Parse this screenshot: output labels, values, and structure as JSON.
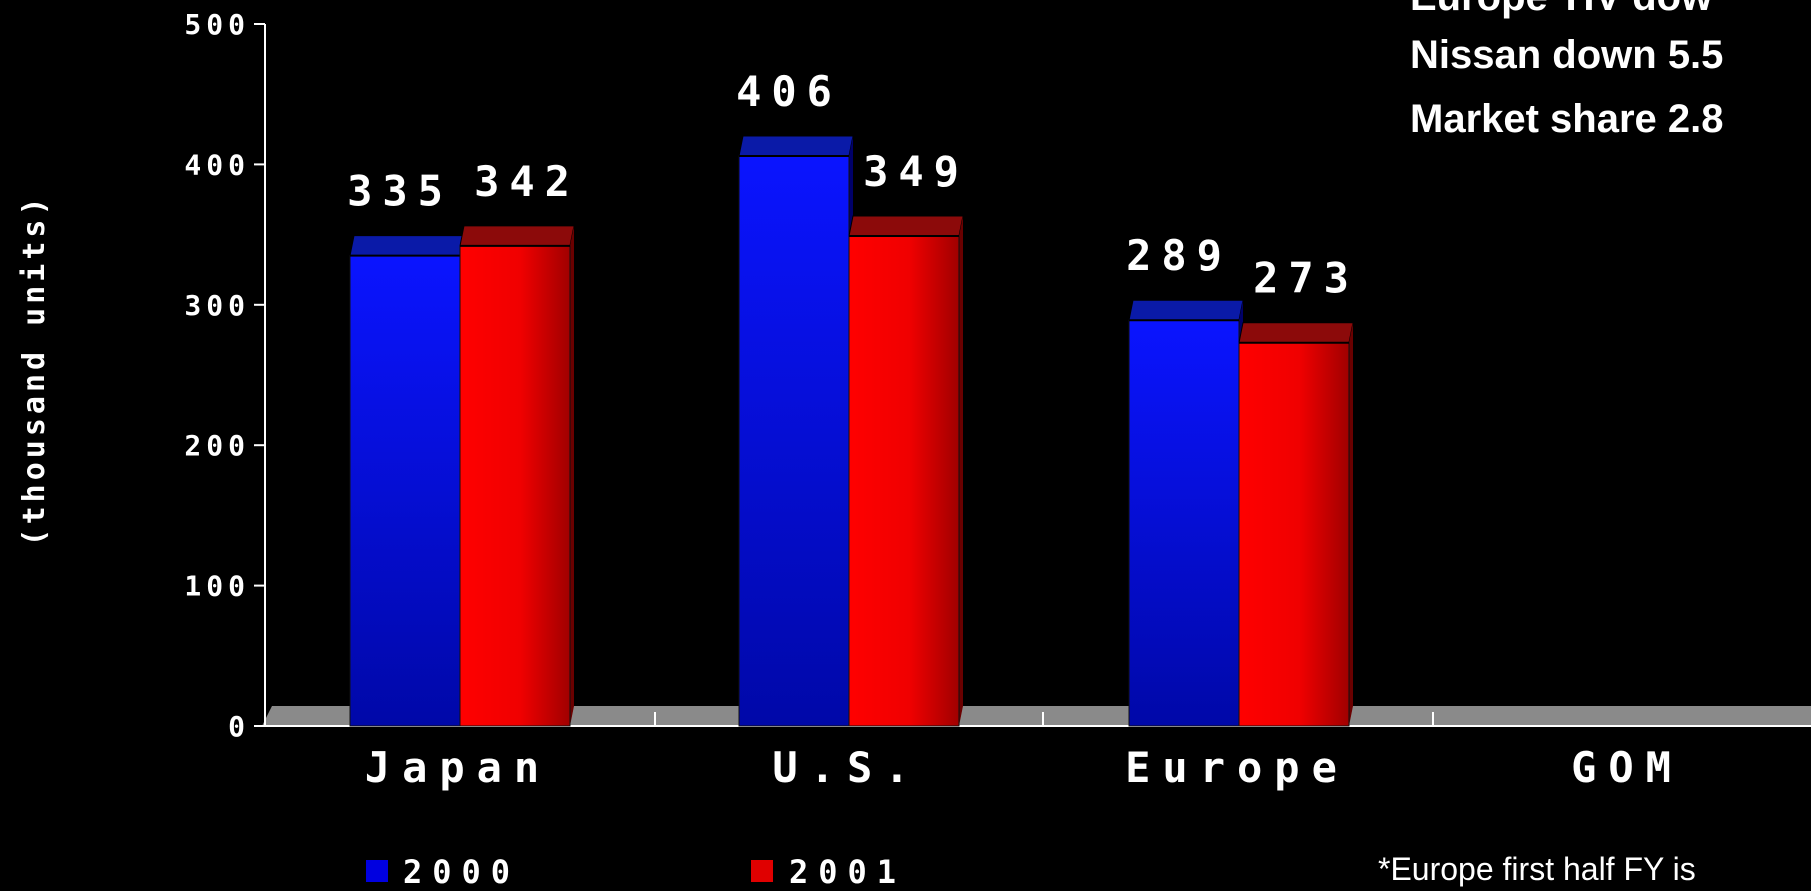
{
  "chart_data": {
    "type": "bar",
    "ylabel": "(thousand units)",
    "ylim": [
      0,
      500
    ],
    "yticks": [
      "0",
      "100",
      "200",
      "300",
      "400",
      "500"
    ],
    "categories": [
      "Japan",
      "U.S.",
      "Europe",
      "GOM"
    ],
    "series": [
      {
        "name": "2000",
        "color": "#0000ff",
        "values": [
          335,
          406,
          289,
          null
        ]
      },
      {
        "name": "2001",
        "color": "#ff0000",
        "values": [
          342,
          349,
          273,
          null
        ]
      }
    ],
    "data_labels": {
      "2000": [
        "335",
        "406",
        "289",
        ""
      ],
      "2001": [
        "342",
        "349",
        "273",
        ""
      ]
    },
    "legend": "bottom-left",
    "grid": false
  },
  "annotations": [
    "Europe TIV dow",
    "Nissan down 5.5",
    "Market share 2.8"
  ],
  "footnote": "*Europe first half FY is"
}
